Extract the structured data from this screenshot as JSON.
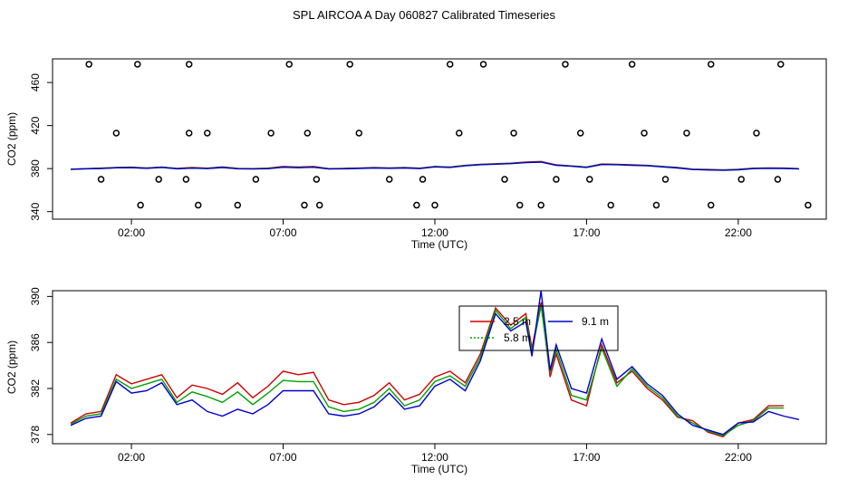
{
  "title": "SPL AIRCOA A  Day 060827  Calibrated Timeseries",
  "chart_data": [
    {
      "type": "line",
      "name": "top",
      "xlabel": "Time (UTC)",
      "ylabel": "CO2 (ppm)",
      "xlim": [
        -0.6,
        24.9
      ],
      "ylim": [
        333,
        482
      ],
      "x_ticks": [
        2,
        7,
        12,
        17,
        22
      ],
      "x_tick_labels": [
        "02:00",
        "07:00",
        "12:00",
        "17:00",
        "22:00"
      ],
      "y_ticks": [
        340,
        380,
        420,
        460
      ],
      "y_tick_labels": [
        "340",
        "380",
        "420",
        "460"
      ],
      "grid": false,
      "series": [
        {
          "color": "#cc0000",
          "x": [
            0,
            0.5,
            1,
            1.5,
            2,
            2.5,
            3,
            3.5,
            4,
            4.5,
            5,
            5.5,
            6,
            6.5,
            7,
            7.5,
            8,
            8.5,
            9,
            9.5,
            10,
            10.5,
            11,
            11.5,
            12,
            12.5,
            13,
            13.5,
            14,
            14.5,
            15,
            15.5,
            16,
            16.5,
            17,
            17.5,
            18,
            18.5,
            19,
            19.5,
            20,
            20.5,
            21,
            21.5,
            22,
            22.5,
            23,
            23.5,
            24
          ],
          "y": [
            379.5,
            380,
            380.5,
            381,
            381.3,
            380.6,
            381.5,
            380.2,
            381,
            380.4,
            381.6,
            380.2,
            380,
            380.4,
            382,
            381.4,
            382,
            380,
            380.2,
            380.5,
            381,
            380.6,
            381,
            380.4,
            382,
            381.5,
            383,
            384,
            384.5,
            385,
            386,
            386.6,
            383.5,
            382.5,
            381.5,
            384.3,
            384,
            383.5,
            383,
            382,
            381,
            379.5,
            379.2,
            378.8,
            379.3,
            380.4,
            380.6,
            380.5,
            380
          ]
        },
        {
          "color": "#00a000",
          "x": [
            0,
            0.5,
            1,
            1.5,
            2,
            2.5,
            3,
            3.5,
            4,
            4.5,
            5,
            5.5,
            6,
            6.5,
            7,
            7.5,
            8,
            8.5,
            9,
            9.5,
            10,
            10.5,
            11,
            11.5,
            12,
            12.5,
            13,
            13.5,
            14,
            14.5,
            15,
            15.5,
            16,
            16.5,
            17,
            17.5,
            18,
            18.5,
            19,
            19.5,
            20,
            20.5,
            21,
            21.5,
            22,
            22.5,
            23,
            23.5,
            24
          ],
          "y": [
            379.4,
            379.9,
            380.2,
            380.9,
            381,
            380.4,
            381.3,
            380,
            380.6,
            380.2,
            381.2,
            380,
            379.8,
            380.1,
            381.4,
            381,
            381.4,
            379.8,
            380,
            380.3,
            380.7,
            380.4,
            380.8,
            380.2,
            381.8,
            381.3,
            382.8,
            383.8,
            384.3,
            384.8,
            385.7,
            386.2,
            383.2,
            382.4,
            381.3,
            384,
            383.8,
            383.2,
            382.8,
            381.8,
            380.8,
            379.3,
            378.9,
            378.6,
            379.1,
            380.2,
            380.4,
            380.3,
            379.8
          ]
        },
        {
          "color": "#0000cc",
          "x": [
            0,
            0.5,
            1,
            1.5,
            2,
            2.5,
            3,
            3.5,
            4,
            4.5,
            5,
            5.5,
            6,
            6.5,
            7,
            7.5,
            8,
            8.5,
            9,
            9.5,
            10,
            10.5,
            11,
            11.5,
            12,
            12.5,
            13,
            13.5,
            14,
            14.5,
            15,
            15.5,
            16,
            16.5,
            17,
            17.5,
            18,
            18.5,
            19,
            19.5,
            20,
            20.5,
            21,
            21.5,
            22,
            22.5,
            23,
            23.5,
            24
          ],
          "y": [
            379.3,
            379.8,
            380,
            380.7,
            380.8,
            380.2,
            381.1,
            379.8,
            380.4,
            380,
            381,
            379.8,
            379.6,
            379.9,
            381.2,
            380.8,
            381.2,
            379.6,
            379.8,
            380.1,
            380.5,
            380.2,
            380.6,
            380,
            381.6,
            381.1,
            382.6,
            383.6,
            384.1,
            384.6,
            385.5,
            386,
            383,
            382.2,
            381.1,
            383.8,
            383.6,
            383,
            382.6,
            381.6,
            380.6,
            379.1,
            378.7,
            378.4,
            378.9,
            380,
            380.2,
            380.1,
            379.6
          ]
        }
      ],
      "scatter": {
        "marker": "circle-open",
        "x": [
          0.6,
          2.2,
          3.9,
          7.2,
          9.2,
          12.5,
          13.6,
          16.3,
          18.5,
          21.1,
          23.4,
          1.5,
          3.9,
          4.5,
          6.6,
          7.8,
          9.5,
          12.8,
          14.6,
          16.8,
          18.9,
          20.3,
          22.6,
          1,
          2.9,
          3.8,
          6.1,
          8.1,
          10.5,
          11.6,
          14.3,
          16,
          17.1,
          19.6,
          22.1,
          23.3,
          2.3,
          4.2,
          5.5,
          7.7,
          8.2,
          11.4,
          12,
          14.8,
          15.5,
          17.8,
          19.3,
          21.1,
          24.3
        ],
        "y": [
          477,
          477,
          477,
          477,
          477,
          477,
          477,
          477,
          477,
          477,
          477,
          413,
          413,
          413,
          413,
          413,
          413,
          413,
          413,
          413,
          413,
          413,
          413,
          370,
          370,
          370,
          370,
          370,
          370,
          370,
          370,
          370,
          370,
          370,
          370,
          370,
          346,
          346,
          346,
          346,
          346,
          346,
          346,
          346,
          346,
          346,
          346,
          346,
          346
        ]
      }
    },
    {
      "type": "line",
      "name": "bottom",
      "xlabel": "Time (UTC)",
      "ylabel": "CO2 (ppm)",
      "xlim": [
        -0.6,
        24.9
      ],
      "ylim": [
        377.2,
        390.5
      ],
      "x_ticks": [
        2,
        7,
        12,
        17,
        22
      ],
      "x_tick_labels": [
        "02:00",
        "07:00",
        "12:00",
        "17:00",
        "22:00"
      ],
      "y_ticks": [
        378,
        382,
        386,
        390
      ],
      "y_tick_labels": [
        "378",
        "382",
        "386",
        "390"
      ],
      "grid": false,
      "legend": {
        "placement": "top-center",
        "entries": [
          {
            "label": "2.5 m",
            "color": "#cc0000"
          },
          {
            "label": "5.8 m",
            "color": "#00a000"
          },
          {
            "label": "9.1 m",
            "color": "#0000cc"
          }
        ]
      },
      "series": [
        {
          "name": "2.5 m",
          "color": "#cc0000",
          "x": [
            0,
            0.5,
            1,
            1.5,
            2,
            2.5,
            3,
            3.5,
            4,
            4.5,
            5,
            5.5,
            6,
            6.5,
            7,
            7.5,
            8,
            8.5,
            9,
            9.5,
            10,
            10.5,
            11,
            11.5,
            12,
            12.5,
            13,
            13.5,
            14,
            14.5,
            15,
            15.2,
            15.5,
            15.8,
            16,
            16.5,
            17,
            17.5,
            18,
            18.5,
            19,
            19.5,
            20,
            20.5,
            21,
            21.5,
            22,
            22.5,
            23,
            23.5
          ],
          "y": [
            379,
            379.8,
            380,
            383.2,
            382.4,
            382.8,
            383.2,
            381.2,
            382.3,
            382,
            381.5,
            382.5,
            381.2,
            382.2,
            383.5,
            383.2,
            383.4,
            381,
            380.6,
            380.8,
            381.4,
            382.5,
            381,
            381.5,
            383,
            383.5,
            382.5,
            385,
            389,
            387.5,
            388.5,
            385.5,
            389.5,
            383,
            385,
            381,
            380.5,
            385.8,
            382.5,
            383.5,
            382,
            381,
            379.5,
            379.2,
            378.2,
            377.8,
            379,
            379.3,
            380.5,
            380.5
          ]
        },
        {
          "name": "5.8 m",
          "color": "#00a000",
          "x": [
            0,
            0.5,
            1,
            1.5,
            2,
            2.5,
            3,
            3.5,
            4,
            4.5,
            5,
            5.5,
            6,
            6.5,
            7,
            7.5,
            8,
            8.5,
            9,
            9.5,
            10,
            10.5,
            11,
            11.5,
            12,
            12.5,
            13,
            13.5,
            14,
            14.5,
            15,
            15.2,
            15.5,
            15.8,
            16,
            16.5,
            17,
            17.5,
            18,
            18.5,
            19,
            19.5,
            20,
            20.5,
            21,
            21.5,
            22,
            22.5,
            23,
            23.5
          ],
          "y": [
            378.9,
            379.6,
            379.8,
            382.8,
            382,
            382.4,
            382.8,
            380.8,
            381.7,
            381.3,
            380.8,
            381.7,
            380.6,
            381.6,
            382.7,
            382.6,
            382.6,
            380.4,
            380,
            380.2,
            380.8,
            382,
            380.5,
            381,
            382.6,
            383.1,
            382.2,
            384.7,
            388.8,
            387.2,
            388.2,
            385.2,
            389.2,
            383.4,
            385.4,
            381.4,
            381,
            385.5,
            382.2,
            383.7,
            382.2,
            381.2,
            379.6,
            379,
            378.3,
            377.9,
            378.8,
            379.2,
            380.3,
            380.3
          ]
        },
        {
          "name": "9.1 m",
          "color": "#0000cc",
          "x": [
            0,
            0.5,
            1,
            1.5,
            2,
            2.5,
            3,
            3.5,
            4,
            4.5,
            5,
            5.5,
            6,
            6.5,
            7,
            7.5,
            8,
            8.5,
            9,
            9.5,
            10,
            10.5,
            11,
            11.5,
            12,
            12.5,
            13,
            13.5,
            14,
            14.5,
            15,
            15.2,
            15.5,
            15.8,
            16,
            16.5,
            17,
            17.5,
            18,
            18.5,
            19,
            19.5,
            20,
            20.5,
            21,
            21.5,
            22,
            22.5,
            23,
            23.5,
            24
          ],
          "y": [
            378.8,
            379.4,
            379.6,
            382.6,
            381.6,
            381.8,
            382.5,
            380.6,
            381,
            380,
            379.6,
            380.2,
            379.8,
            380.6,
            381.8,
            381.8,
            381.8,
            379.8,
            379.6,
            379.8,
            380.4,
            381.6,
            380.2,
            380.5,
            382.2,
            382.8,
            381.8,
            384.4,
            388.5,
            387,
            387.8,
            384.8,
            390.5,
            383.6,
            385.8,
            382,
            381.6,
            386.3,
            382.8,
            383.9,
            382.4,
            381.4,
            379.8,
            378.8,
            378.4,
            378,
            379,
            379.1,
            380,
            379.6,
            379.3
          ]
        }
      ]
    }
  ]
}
